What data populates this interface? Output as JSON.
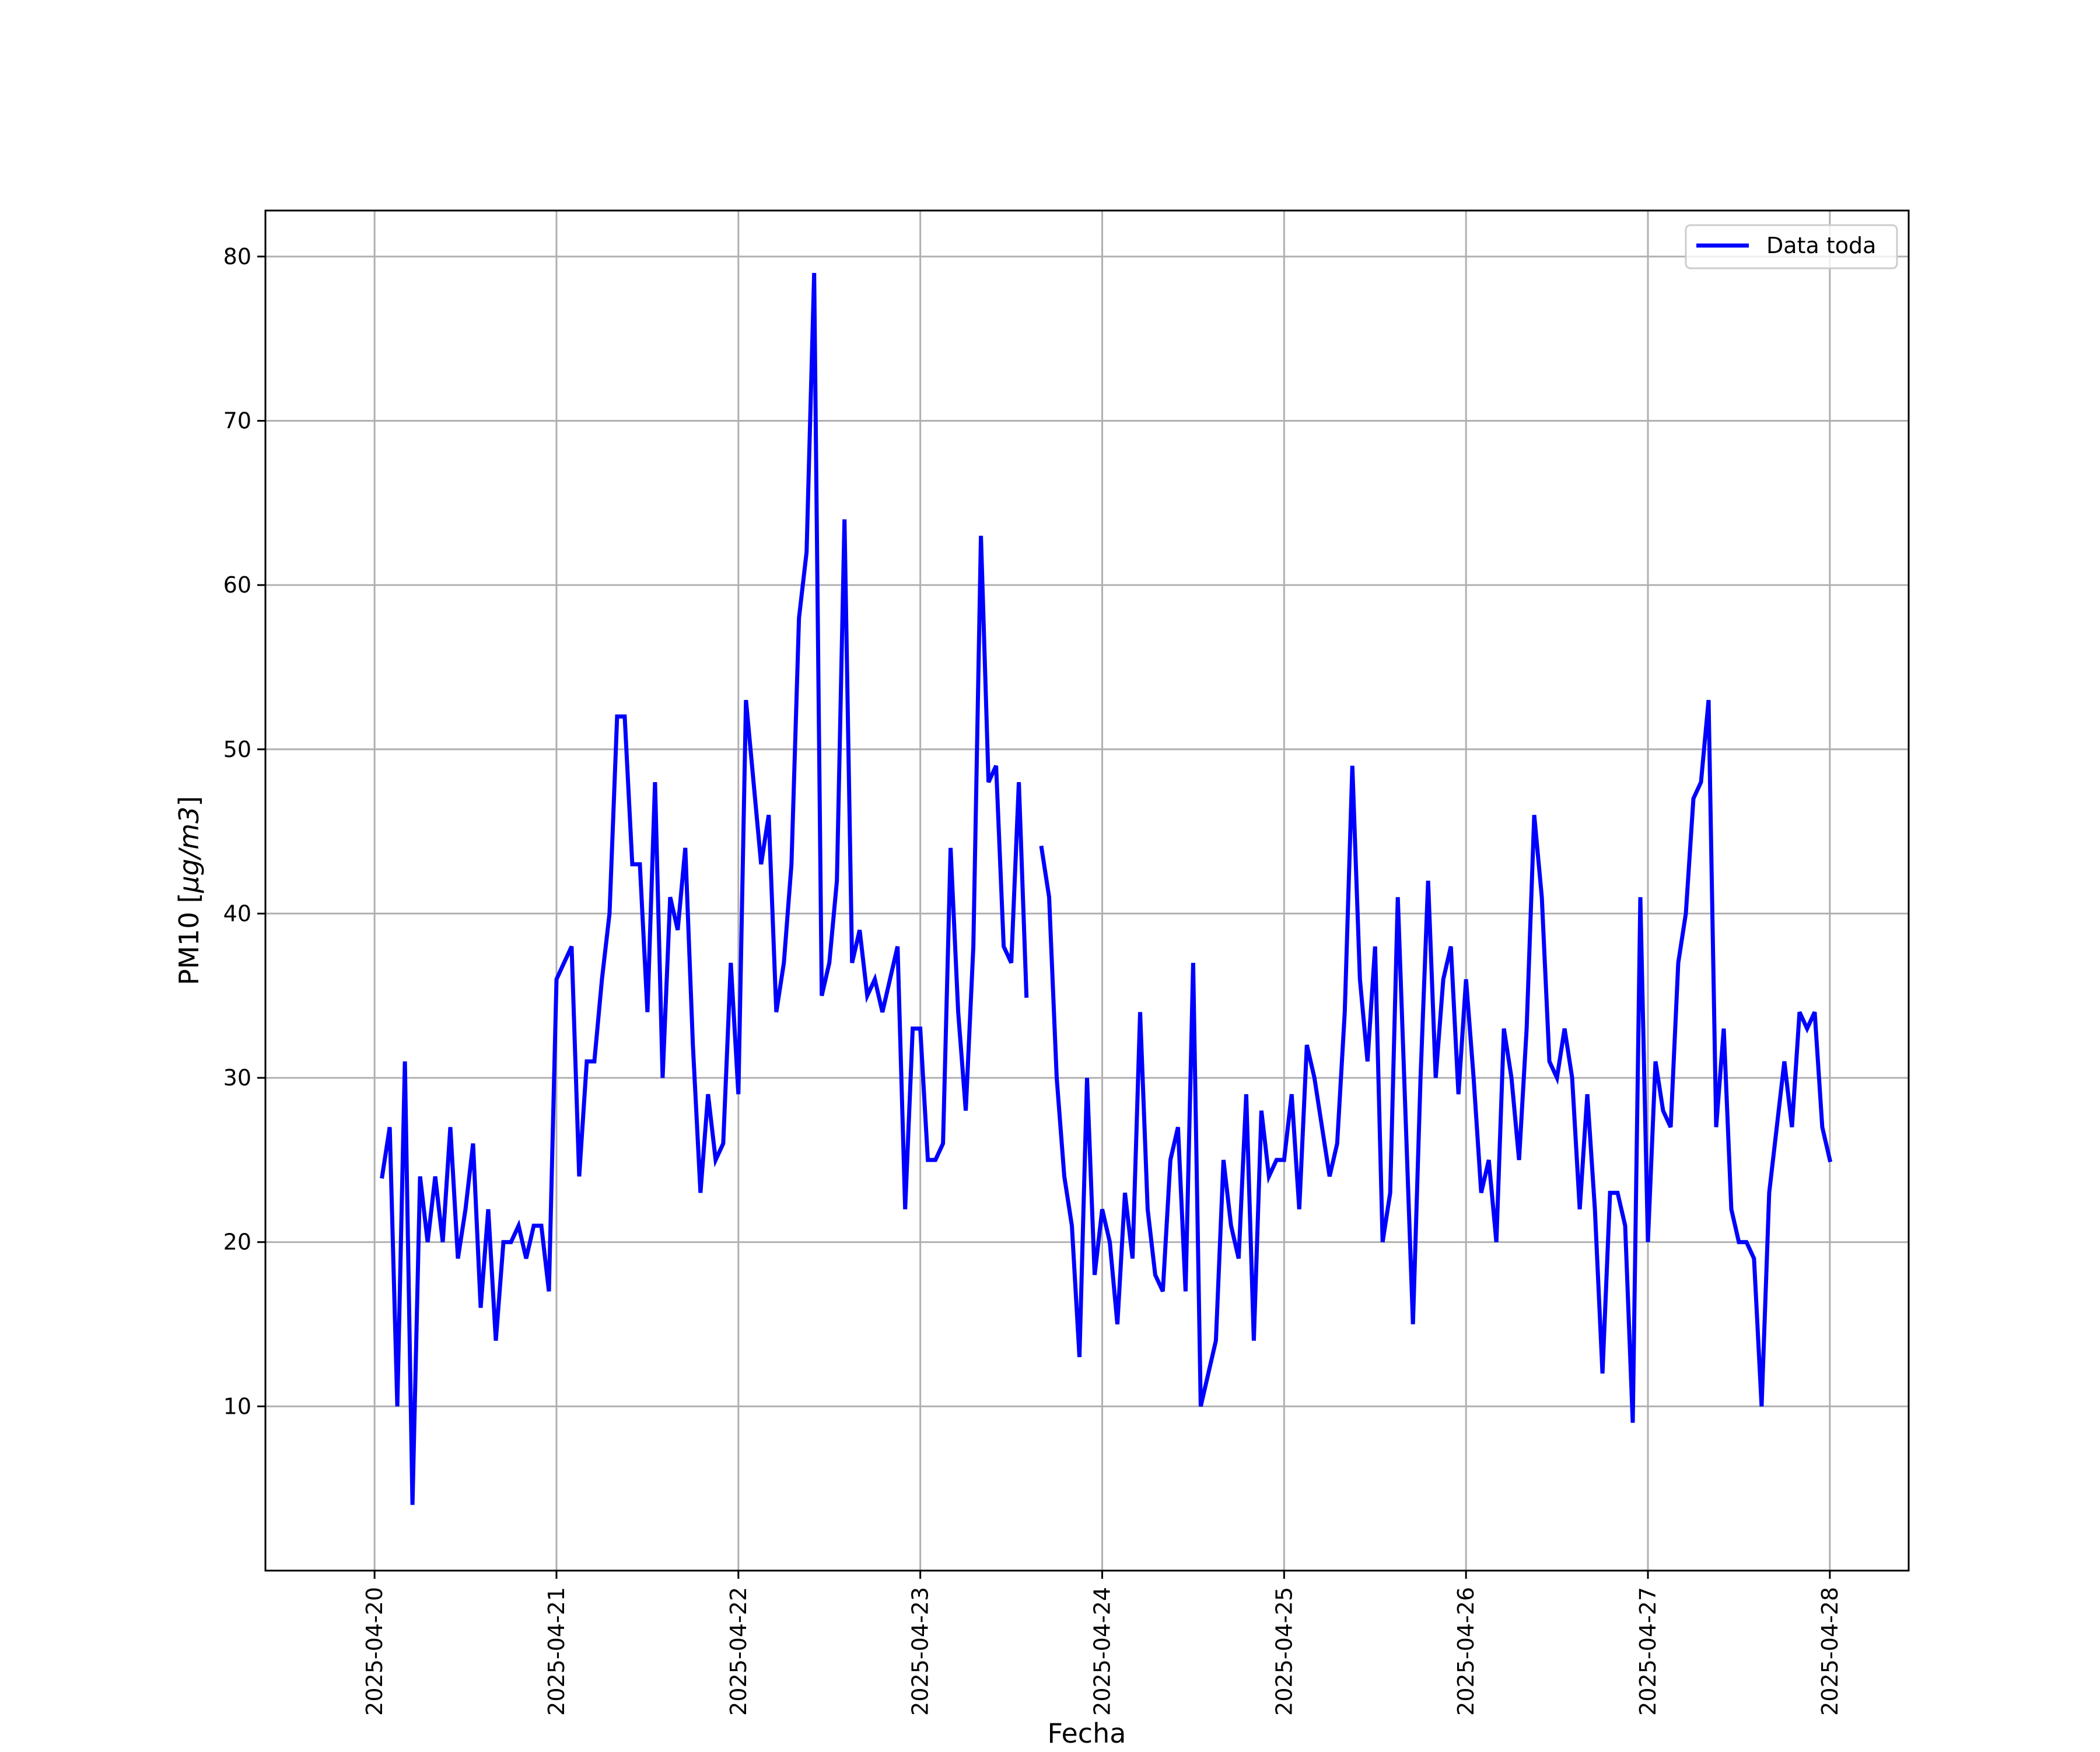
{
  "chart_data": {
    "type": "line",
    "title": "",
    "xlabel": "Fecha",
    "ylabel_prefix": "PM10 [",
    "ylabel_math": "μg/m3",
    "ylabel_suffix": "]",
    "x_start": "2025-04-20",
    "x_end": "2025-04-28",
    "xlim": [
      "2025-04-19 09:36",
      "2025-04-28 10:24"
    ],
    "ylim": [
      0,
      82.8
    ],
    "xticks": [
      "2025-04-20",
      "2025-04-21",
      "2025-04-22",
      "2025-04-23",
      "2025-04-24",
      "2025-04-25",
      "2025-04-26",
      "2025-04-27",
      "2025-04-28"
    ],
    "yticks": [
      10,
      20,
      30,
      40,
      50,
      60,
      70,
      80
    ],
    "grid": true,
    "legend": {
      "position": "top-right",
      "entries": [
        "Data toda"
      ]
    },
    "colors": {
      "line": "#0000ff",
      "grid": "#b0b0b0",
      "frame": "#000000"
    },
    "series": [
      {
        "name": "Data toda",
        "sampling": "hourly",
        "values": [
          24,
          27,
          10,
          31,
          4,
          24,
          20,
          24,
          20,
          27,
          19,
          22,
          26,
          16,
          22,
          14,
          20,
          20,
          21,
          19,
          21,
          21,
          17,
          36,
          37,
          38,
          24,
          31,
          31,
          36,
          40,
          52,
          52,
          43,
          43,
          34,
          48,
          30,
          41,
          39,
          44,
          32,
          23,
          29,
          25,
          26,
          37,
          29,
          53,
          48,
          43,
          46,
          34,
          37,
          43,
          58,
          62,
          79,
          35,
          37,
          42,
          64,
          37,
          39,
          35,
          36,
          34,
          36,
          38,
          22,
          33,
          33,
          25,
          25,
          26,
          44,
          34,
          28,
          38,
          63,
          48,
          49,
          38,
          37,
          48,
          35,
          null,
          44,
          41,
          30,
          24,
          21,
          13,
          30,
          18,
          22,
          20,
          15,
          23,
          19,
          34,
          22,
          18,
          17,
          25,
          27,
          17,
          37,
          10,
          12,
          14,
          25,
          21,
          19,
          29,
          14,
          28,
          24,
          25,
          25,
          29,
          22,
          32,
          30,
          27,
          24,
          26,
          34,
          49,
          36,
          31,
          38,
          20,
          23,
          41,
          28,
          15,
          30,
          42,
          30,
          36,
          38,
          29,
          36,
          30,
          23,
          25,
          20,
          33,
          30,
          25,
          33,
          46,
          41,
          31,
          30,
          33,
          30,
          22,
          29,
          22,
          12,
          23,
          23,
          21,
          9,
          41,
          20,
          31,
          28,
          27,
          37,
          40,
          47,
          48,
          53,
          27,
          33,
          22,
          20,
          20,
          19,
          10,
          23,
          27,
          31,
          27,
          34,
          33,
          34,
          27,
          25
        ]
      }
    ]
  }
}
